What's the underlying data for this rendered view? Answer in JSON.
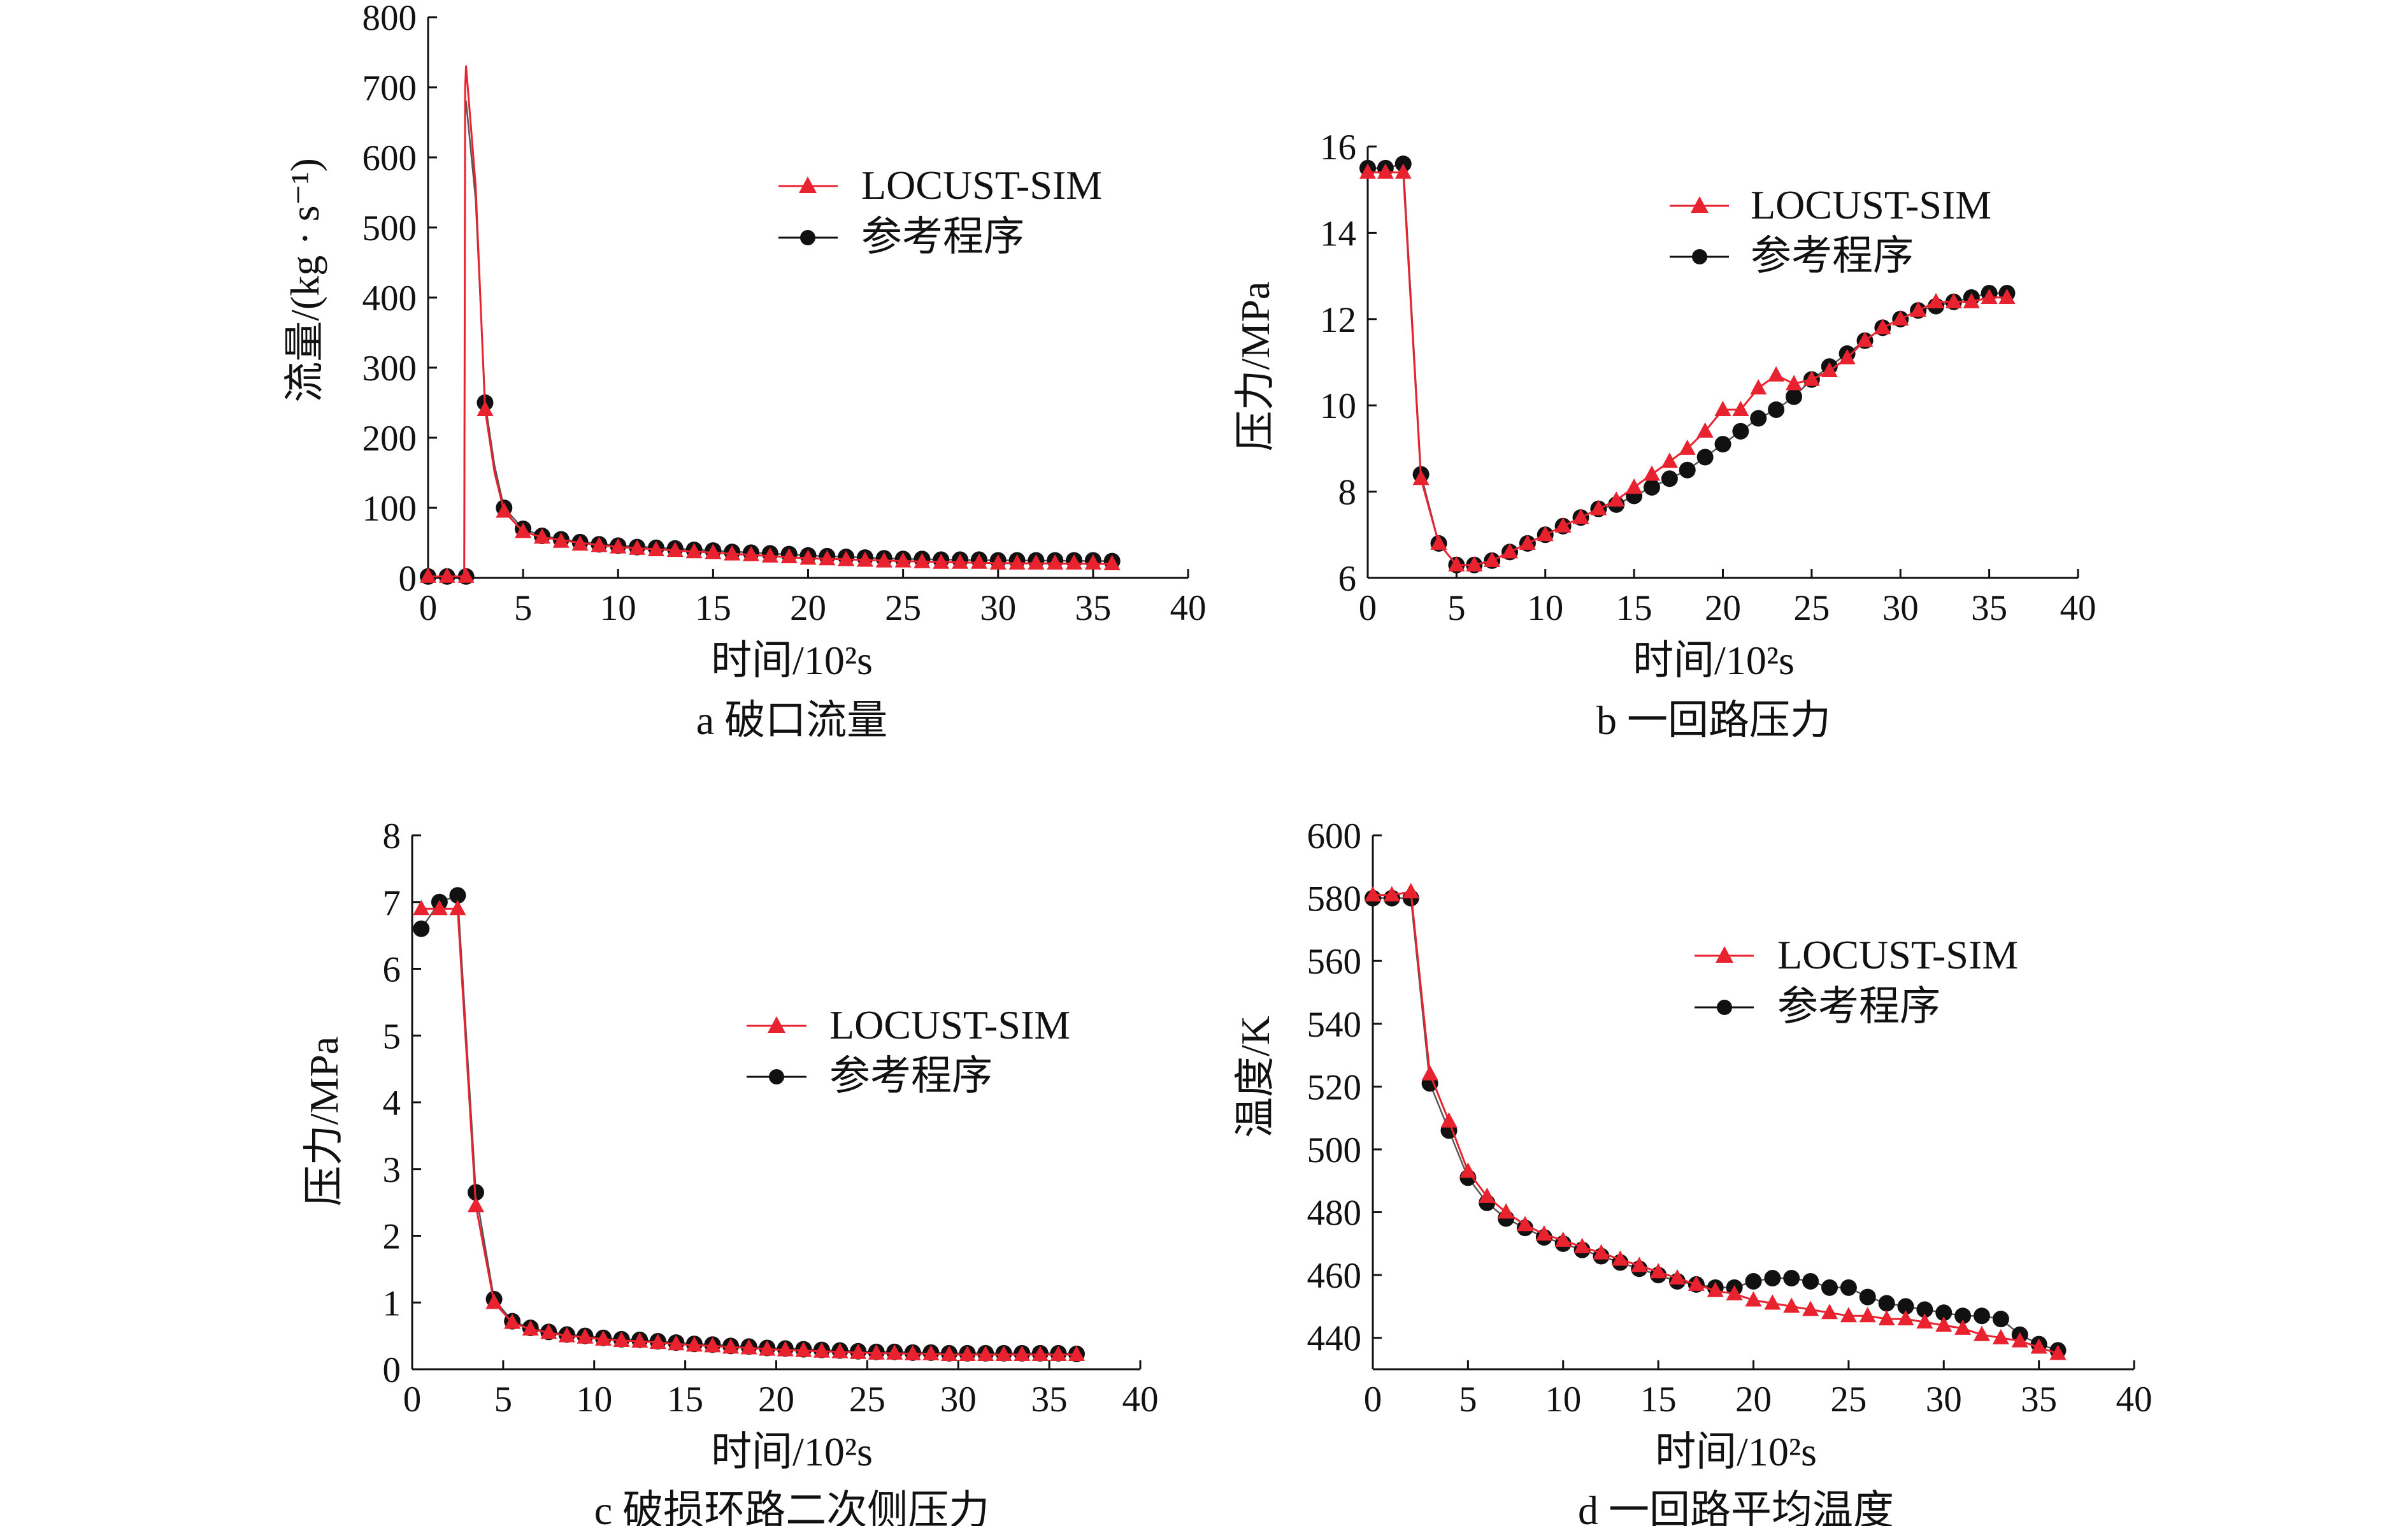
{
  "colors": {
    "locust": "#e8232f",
    "ref": "#111111",
    "axis": "#111111"
  },
  "legend": {
    "series_a": "LOCUST-SIM",
    "series_b": "参考程序"
  },
  "chart_data": [
    {
      "id": "a",
      "type": "line",
      "caption": "a  破口流量",
      "xlabel": "时间/10²s",
      "ylabel": "流量/(kg · s⁻¹)",
      "xlim": [
        0,
        40
      ],
      "ylim": [
        0,
        800
      ],
      "xticks": [
        0,
        5,
        10,
        15,
        20,
        25,
        30,
        35,
        40
      ],
      "yticks": [
        0,
        100,
        200,
        300,
        400,
        500,
        600,
        700,
        800
      ],
      "legend_position": "upper-right",
      "series": [
        {
          "name": "LOCUST-SIM",
          "marker": "triangle",
          "color": "#e8232f",
          "x": [
            0,
            1,
            2,
            3,
            4,
            5,
            6,
            7,
            8,
            9,
            10,
            11,
            12,
            13,
            14,
            15,
            16,
            17,
            18,
            19,
            20,
            21,
            22,
            23,
            24,
            25,
            26,
            27,
            28,
            29,
            30,
            31,
            32,
            33,
            34,
            35,
            36
          ],
          "y": [
            2,
            2,
            2,
            240,
            95,
            66,
            58,
            52,
            48,
            46,
            44,
            42,
            40,
            39,
            37,
            36,
            34,
            33,
            31,
            30,
            28,
            27,
            26,
            25,
            24,
            24,
            23,
            22,
            22,
            22,
            21,
            21,
            21,
            21,
            21,
            21,
            20
          ],
          "line_x": [
            0,
            1.9,
            1.95,
            2,
            2.5,
            3,
            3.5,
            4,
            5,
            6,
            8,
            10,
            15,
            20,
            25,
            30,
            36
          ],
          "line_y": [
            2,
            2,
            700,
            730,
            560,
            240,
            150,
            95,
            66,
            58,
            50,
            44,
            36,
            28,
            24,
            21,
            20
          ]
        },
        {
          "name": "参考程序",
          "marker": "circle",
          "color": "#111111",
          "x": [
            0,
            1,
            2,
            3,
            4,
            5,
            6,
            7,
            8,
            9,
            10,
            11,
            12,
            13,
            14,
            15,
            16,
            17,
            18,
            19,
            20,
            21,
            22,
            23,
            24,
            25,
            26,
            27,
            28,
            29,
            30,
            31,
            32,
            33,
            34,
            35,
            36
          ],
          "y": [
            2,
            2,
            2,
            250,
            100,
            70,
            60,
            55,
            51,
            48,
            46,
            44,
            43,
            42,
            40,
            39,
            37,
            36,
            35,
            34,
            32,
            31,
            30,
            29,
            28,
            27,
            27,
            26,
            26,
            26,
            25,
            25,
            25,
            25,
            25,
            25,
            24
          ],
          "line_x": [
            0,
            1.9,
            1.95,
            2,
            2.5,
            3,
            3.5,
            4,
            5,
            6,
            8,
            10,
            15,
            20,
            25,
            30,
            36
          ],
          "line_y": [
            2,
            2,
            660,
            680,
            540,
            250,
            160,
            100,
            70,
            60,
            51,
            46,
            39,
            32,
            27,
            25,
            24
          ]
        }
      ]
    },
    {
      "id": "b",
      "type": "line",
      "caption": "b  一回路压力",
      "xlabel": "时间/10²s",
      "ylabel": "压力/MPa",
      "xlim": [
        0,
        40
      ],
      "ylim": [
        6,
        16
      ],
      "xticks": [
        0,
        5,
        10,
        15,
        20,
        25,
        30,
        35,
        40
      ],
      "yticks": [
        6,
        8,
        10,
        12,
        14,
        16
      ],
      "legend_position": "upper-right",
      "series": [
        {
          "name": "LOCUST-SIM",
          "marker": "triangle",
          "color": "#e8232f",
          "x": [
            0,
            1,
            2,
            3,
            4,
            5,
            6,
            7,
            8,
            9,
            10,
            11,
            12,
            13,
            14,
            15,
            16,
            17,
            18,
            19,
            20,
            21,
            22,
            23,
            24,
            25,
            26,
            27,
            28,
            29,
            30,
            31,
            32,
            33,
            34,
            35,
            36
          ],
          "y": [
            15.4,
            15.4,
            15.4,
            8.3,
            6.8,
            6.3,
            6.3,
            6.4,
            6.6,
            6.8,
            7.0,
            7.2,
            7.4,
            7.6,
            7.8,
            8.1,
            8.4,
            8.7,
            9.0,
            9.4,
            9.9,
            9.9,
            10.4,
            10.7,
            10.5,
            10.6,
            10.8,
            11.1,
            11.5,
            11.8,
            12.0,
            12.2,
            12.4,
            12.4,
            12.4,
            12.5,
            12.5
          ]
        },
        {
          "name": "参考程序",
          "marker": "circle",
          "color": "#111111",
          "x": [
            0,
            1,
            2,
            3,
            4,
            5,
            6,
            7,
            8,
            9,
            10,
            11,
            12,
            13,
            14,
            15,
            16,
            17,
            18,
            19,
            20,
            21,
            22,
            23,
            24,
            25,
            26,
            27,
            28,
            29,
            30,
            31,
            32,
            33,
            34,
            35,
            36
          ],
          "y": [
            15.5,
            15.5,
            15.6,
            8.4,
            6.8,
            6.3,
            6.3,
            6.4,
            6.6,
            6.8,
            7.0,
            7.2,
            7.4,
            7.6,
            7.7,
            7.9,
            8.1,
            8.3,
            8.5,
            8.8,
            9.1,
            9.4,
            9.7,
            9.9,
            10.2,
            10.6,
            10.9,
            11.2,
            11.5,
            11.8,
            12.0,
            12.2,
            12.3,
            12.4,
            12.5,
            12.6,
            12.6
          ]
        }
      ]
    },
    {
      "id": "c",
      "type": "line",
      "caption": "c  破损环路二次侧压力",
      "xlabel": "时间/10²s",
      "ylabel": "压力/MPa",
      "xlim": [
        0,
        40
      ],
      "ylim": [
        0,
        8
      ],
      "xticks": [
        0,
        5,
        10,
        15,
        20,
        25,
        30,
        35,
        40
      ],
      "yticks": [
        0,
        1,
        2,
        3,
        4,
        5,
        6,
        7,
        8
      ],
      "legend_position": "middle-right",
      "series": [
        {
          "name": "LOCUST-SIM",
          "marker": "triangle",
          "color": "#e8232f",
          "x": [
            0.5,
            1.5,
            2.5,
            3.5,
            4.5,
            5.5,
            6.5,
            7.5,
            8.5,
            9.5,
            10.5,
            11.5,
            12.5,
            13.5,
            14.5,
            15.5,
            16.5,
            17.5,
            18.5,
            19.5,
            20.5,
            21.5,
            22.5,
            23.5,
            24.5,
            25.5,
            26.5,
            27.5,
            28.5,
            29.5,
            30.5,
            31.5,
            32.5,
            33.5,
            34.5,
            35.5,
            36.5
          ],
          "y": [
            6.9,
            6.9,
            6.9,
            2.45,
            1.0,
            0.7,
            0.6,
            0.55,
            0.5,
            0.48,
            0.45,
            0.43,
            0.42,
            0.4,
            0.38,
            0.36,
            0.35,
            0.33,
            0.32,
            0.3,
            0.29,
            0.28,
            0.27,
            0.26,
            0.25,
            0.24,
            0.24,
            0.23,
            0.23,
            0.22,
            0.22,
            0.22,
            0.22,
            0.22,
            0.22,
            0.22,
            0.22
          ]
        },
        {
          "name": "参考程序",
          "marker": "circle",
          "color": "#111111",
          "x": [
            0.5,
            1.5,
            2.5,
            3.5,
            4.5,
            5.5,
            6.5,
            7.5,
            8.5,
            9.5,
            10.5,
            11.5,
            12.5,
            13.5,
            14.5,
            15.5,
            16.5,
            17.5,
            18.5,
            19.5,
            20.5,
            21.5,
            22.5,
            23.5,
            24.5,
            25.5,
            26.5,
            27.5,
            28.5,
            29.5,
            30.5,
            31.5,
            32.5,
            33.5,
            34.5,
            35.5,
            36.5
          ],
          "y": [
            6.6,
            7.0,
            7.1,
            2.65,
            1.05,
            0.72,
            0.62,
            0.56,
            0.52,
            0.5,
            0.47,
            0.45,
            0.44,
            0.42,
            0.4,
            0.38,
            0.37,
            0.35,
            0.34,
            0.32,
            0.31,
            0.3,
            0.29,
            0.28,
            0.27,
            0.26,
            0.26,
            0.25,
            0.25,
            0.24,
            0.24,
            0.24,
            0.24,
            0.24,
            0.24,
            0.24,
            0.23
          ]
        }
      ]
    },
    {
      "id": "d",
      "type": "line",
      "caption": "d  一回路平均温度",
      "xlabel": "时间/10²s",
      "ylabel": "温度/K",
      "xlim": [
        0,
        40
      ],
      "ylim": [
        430,
        600
      ],
      "xticks": [
        0,
        5,
        10,
        15,
        20,
        25,
        30,
        35,
        40
      ],
      "yticks": [
        440,
        460,
        480,
        500,
        520,
        540,
        560,
        580,
        600
      ],
      "legend_position": "upper-right",
      "series": [
        {
          "name": "LOCUST-SIM",
          "marker": "triangle",
          "color": "#e8232f",
          "x": [
            0,
            1,
            2,
            3,
            4,
            5,
            6,
            7,
            8,
            9,
            10,
            11,
            12,
            13,
            14,
            15,
            16,
            17,
            18,
            19,
            20,
            21,
            22,
            23,
            24,
            25,
            26,
            27,
            28,
            29,
            30,
            31,
            32,
            33,
            34,
            35,
            36
          ],
          "y": [
            581,
            581,
            582,
            524,
            509,
            493,
            485,
            480,
            476,
            473,
            471,
            469,
            467,
            465,
            463,
            461,
            459,
            457,
            455,
            454,
            452,
            451,
            450,
            449,
            448,
            447,
            447,
            446,
            446,
            445,
            444,
            443,
            441,
            440,
            439,
            437,
            435
          ]
        },
        {
          "name": "参考程序",
          "marker": "circle",
          "color": "#111111",
          "x": [
            0,
            1,
            2,
            3,
            4,
            5,
            6,
            7,
            8,
            9,
            10,
            11,
            12,
            13,
            14,
            15,
            16,
            17,
            18,
            19,
            20,
            21,
            22,
            23,
            24,
            25,
            26,
            27,
            28,
            29,
            30,
            31,
            32,
            33,
            34,
            35,
            36
          ],
          "y": [
            580,
            580,
            580,
            521,
            506,
            491,
            483,
            478,
            475,
            472,
            470,
            468,
            466,
            464,
            462,
            460,
            458,
            457,
            456,
            456,
            458,
            459,
            459,
            458,
            456,
            456,
            453,
            451,
            450,
            449,
            448,
            447,
            447,
            446,
            441,
            438,
            436
          ]
        }
      ]
    }
  ]
}
